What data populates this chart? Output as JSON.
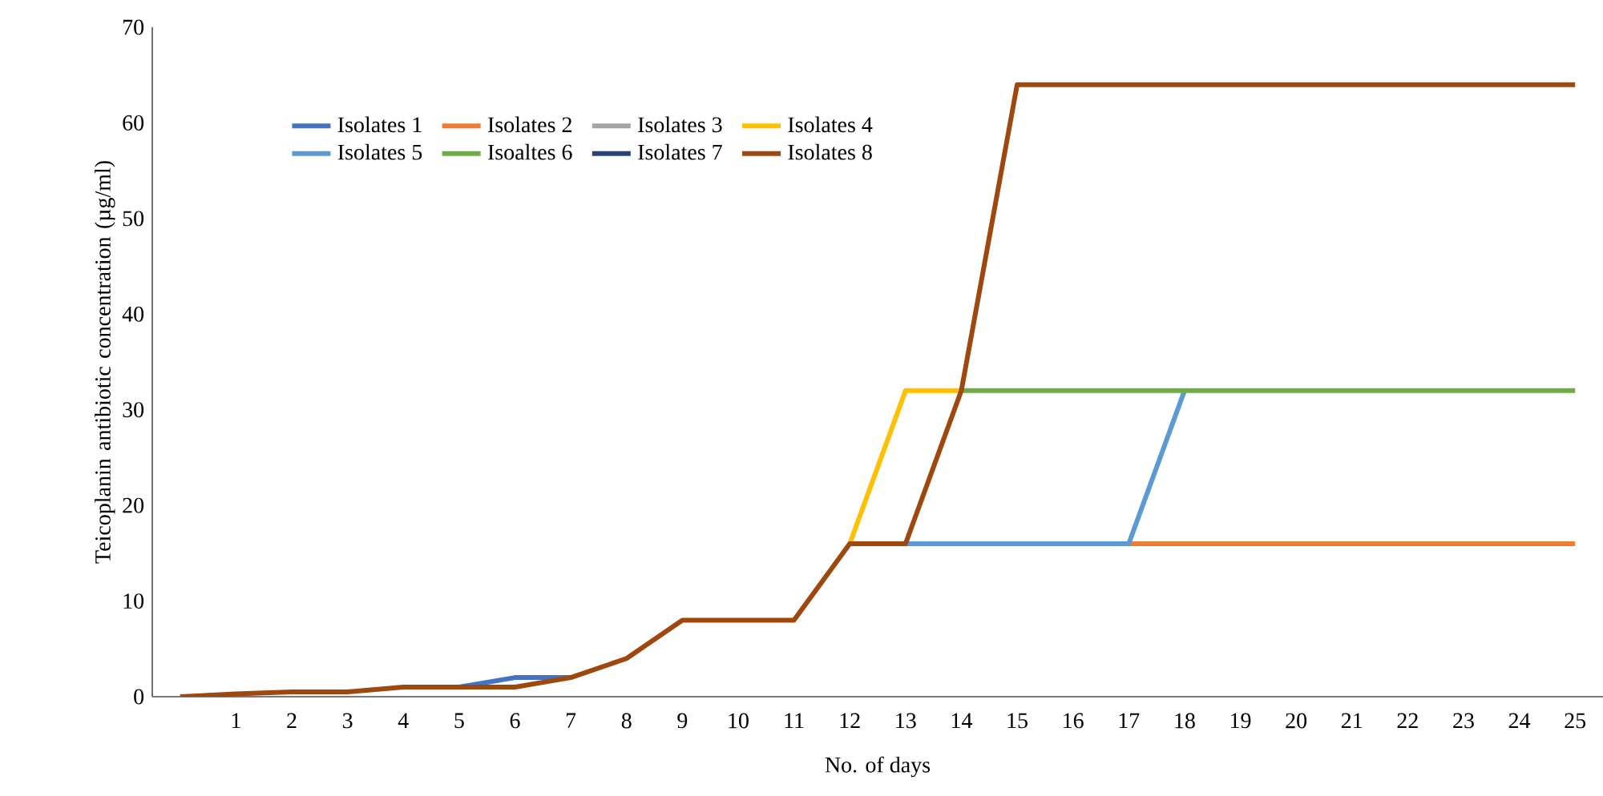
{
  "chart_data": {
    "type": "line",
    "xlabel": "No. of days",
    "ylabel": "Teicoplanin antibiotic concentration (µg/ml)",
    "categories": [
      null,
      "1",
      "2",
      "3",
      "4",
      "5",
      "6",
      "7",
      "8",
      "9",
      "10",
      "11",
      "12",
      "13",
      "14",
      "15",
      "16",
      "17",
      "18",
      "19",
      "20",
      "21",
      "22",
      "23",
      "24",
      "25"
    ],
    "ylim": [
      0,
      70
    ],
    "yticks": [
      0,
      10,
      20,
      30,
      40,
      50,
      60,
      70
    ],
    "grid": false,
    "legend": "top left",
    "marker": "none",
    "line_style": "solid",
    "series": [
      {
        "name": "Isolates 1",
        "color": "#4472c4",
        "values": [
          null,
          null,
          null,
          null,
          null,
          1,
          2,
          2,
          null,
          null,
          null,
          null,
          null,
          null,
          null,
          null,
          null,
          null,
          null,
          null,
          null,
          null,
          null,
          null,
          null,
          null
        ]
      },
      {
        "name": "Isolates 2",
        "color": "#ed7d31",
        "values": [
          null,
          null,
          null,
          null,
          null,
          null,
          null,
          null,
          null,
          null,
          null,
          null,
          null,
          null,
          null,
          null,
          null,
          16,
          16,
          16,
          16,
          16,
          16,
          16,
          16,
          16
        ]
      },
      {
        "name": "Isolates 3",
        "color": "#a5a5a5",
        "values": [
          null,
          null,
          null,
          null,
          null,
          null,
          null,
          null,
          null,
          null,
          null,
          null,
          null,
          null,
          null,
          null,
          null,
          null,
          null,
          null,
          null,
          null,
          null,
          null,
          null,
          null
        ]
      },
      {
        "name": "Isolates 4",
        "color": "#ffc000",
        "values": [
          null,
          null,
          null,
          null,
          null,
          null,
          null,
          null,
          null,
          null,
          null,
          null,
          16,
          32,
          32,
          null,
          null,
          null,
          null,
          null,
          null,
          null,
          null,
          null,
          null,
          null
        ]
      },
      {
        "name": "Isolates 5",
        "color": "#5b9bd5",
        "values": [
          null,
          null,
          null,
          null,
          null,
          null,
          null,
          null,
          null,
          null,
          null,
          null,
          null,
          16,
          16,
          16,
          16,
          16,
          32,
          null,
          null,
          null,
          null,
          null,
          null,
          null
        ]
      },
      {
        "name": "Isoaltes 6",
        "color": "#70ad47",
        "values": [
          null,
          null,
          null,
          null,
          null,
          null,
          null,
          null,
          null,
          null,
          null,
          null,
          null,
          null,
          32,
          32,
          32,
          32,
          32,
          32,
          32,
          32,
          32,
          32,
          32,
          32
        ]
      },
      {
        "name": "Isolates 7",
        "color": "#264478",
        "values": [
          null,
          null,
          null,
          null,
          null,
          null,
          null,
          null,
          null,
          null,
          null,
          null,
          null,
          null,
          null,
          null,
          null,
          null,
          null,
          null,
          null,
          null,
          null,
          null,
          null,
          null
        ]
      },
      {
        "name": "Isolates 8",
        "color": "#9e480e",
        "values": [
          0,
          0.3,
          0.5,
          0.5,
          1,
          1,
          1,
          2,
          4,
          8,
          8,
          8,
          16,
          16,
          32,
          64,
          64,
          64,
          64,
          64,
          64,
          64,
          64,
          64,
          64,
          64
        ]
      }
    ]
  }
}
